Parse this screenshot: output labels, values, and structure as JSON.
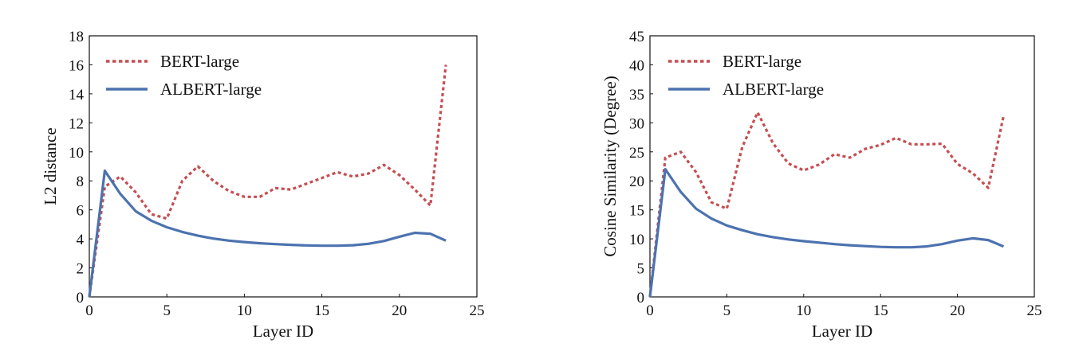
{
  "chart_data": [
    {
      "type": "line",
      "xlabel": "Layer ID",
      "ylabel": "L2 distance",
      "xlim": [
        0,
        25
      ],
      "ylim": [
        0,
        18
      ],
      "xticks": [
        0,
        5,
        10,
        15,
        20,
        25
      ],
      "yticks": [
        0,
        2,
        4,
        6,
        8,
        10,
        12,
        14,
        16,
        18
      ],
      "grid": false,
      "legend": "top-left",
      "series": [
        {
          "name": "BERT-large",
          "style": "dotted",
          "color": "#c44e52",
          "x": [
            0,
            1,
            2,
            3,
            4,
            5,
            6,
            7,
            8,
            9,
            10,
            11,
            12,
            13,
            14,
            15,
            16,
            17,
            18,
            19,
            20,
            21,
            22,
            23
          ],
          "values": [
            0,
            7.6,
            8.3,
            7.2,
            5.7,
            5.4,
            8.0,
            9.0,
            8.0,
            7.3,
            6.9,
            6.9,
            7.5,
            7.4,
            7.8,
            8.2,
            8.6,
            8.3,
            8.5,
            9.1,
            8.4,
            7.4,
            6.3,
            16.0
          ]
        },
        {
          "name": "ALBERT-large",
          "style": "solid",
          "color": "#4c72b0",
          "x": [
            0,
            1,
            2,
            3,
            4,
            5,
            6,
            7,
            8,
            9,
            10,
            11,
            12,
            13,
            14,
            15,
            16,
            17,
            18,
            19,
            20,
            21,
            22,
            23
          ],
          "values": [
            0,
            8.7,
            7.1,
            5.9,
            5.25,
            4.8,
            4.48,
            4.22,
            4.02,
            3.88,
            3.78,
            3.7,
            3.64,
            3.59,
            3.55,
            3.53,
            3.53,
            3.56,
            3.66,
            3.85,
            4.15,
            4.42,
            4.35,
            3.88
          ]
        }
      ]
    },
    {
      "type": "line",
      "xlabel": "Layer ID",
      "ylabel": "Cosine Similarity (Degree)",
      "xlim": [
        0,
        25
      ],
      "ylim": [
        0,
        45
      ],
      "xticks": [
        0,
        5,
        10,
        15,
        20,
        25
      ],
      "yticks": [
        0,
        5,
        10,
        15,
        20,
        25,
        30,
        35,
        40,
        45
      ],
      "grid": false,
      "legend": "top-left",
      "series": [
        {
          "name": "BERT-large",
          "style": "dotted",
          "color": "#c44e52",
          "x": [
            0,
            1,
            2,
            3,
            4,
            5,
            6,
            7,
            8,
            9,
            10,
            11,
            12,
            13,
            14,
            15,
            16,
            17,
            18,
            19,
            20,
            21,
            22,
            23
          ],
          "values": [
            0,
            24.0,
            25.0,
            21.5,
            16.3,
            15.2,
            25.8,
            31.8,
            26.5,
            23.0,
            21.8,
            22.8,
            24.6,
            24.0,
            25.5,
            26.2,
            27.4,
            26.3,
            26.3,
            26.4,
            22.9,
            21.3,
            18.8,
            31.2
          ]
        },
        {
          "name": "ALBERT-large",
          "style": "solid",
          "color": "#4c72b0",
          "x": [
            0,
            1,
            2,
            3,
            4,
            5,
            6,
            7,
            8,
            9,
            10,
            11,
            12,
            13,
            14,
            15,
            16,
            17,
            18,
            19,
            20,
            21,
            22,
            23
          ],
          "values": [
            0,
            22.0,
            18.1,
            15.2,
            13.5,
            12.3,
            11.5,
            10.8,
            10.3,
            9.9,
            9.6,
            9.35,
            9.1,
            8.9,
            8.75,
            8.62,
            8.55,
            8.55,
            8.7,
            9.1,
            9.7,
            10.1,
            9.8,
            8.7
          ]
        }
      ]
    }
  ]
}
